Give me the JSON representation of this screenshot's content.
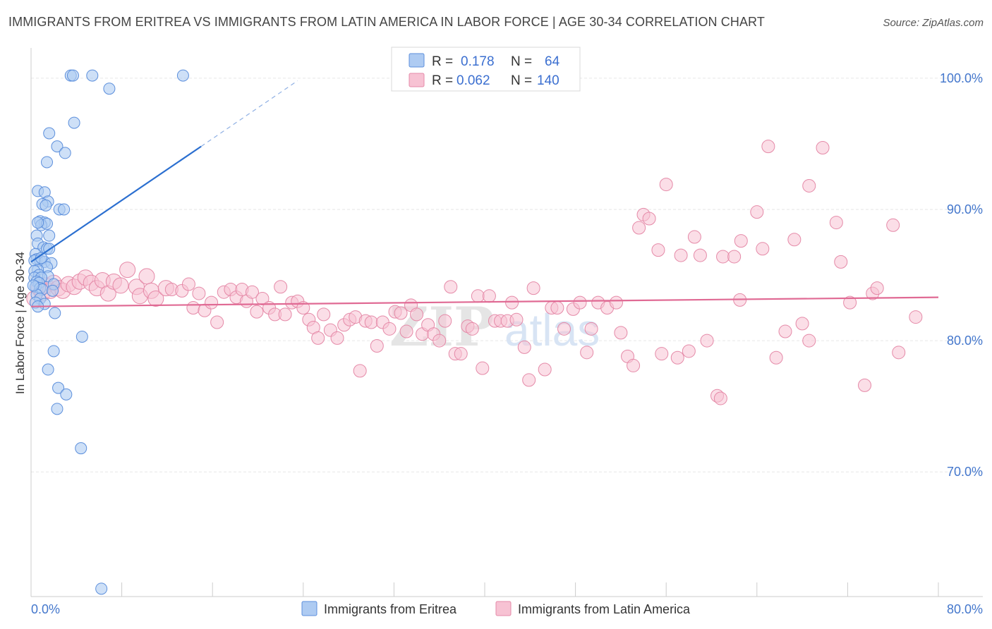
{
  "title": "IMMIGRANTS FROM ERITREA VS IMMIGRANTS FROM LATIN AMERICA IN LABOR FORCE | AGE 30-34 CORRELATION CHART",
  "source": "Source: ZipAtlas.com",
  "watermark": "ZIPatlas",
  "colors": {
    "blue_fill": "#aecbf2",
    "blue_stroke": "#5c8fdc",
    "blue_line": "#2b6fd0",
    "pink_fill": "#f7c2d3",
    "pink_stroke": "#e58aa8",
    "pink_line": "#e06a94",
    "tick_label": "#4477cc",
    "grid": "#e6e6e6"
  },
  "chart_data": {
    "type": "scatter",
    "ylabel": "In Labor Force | Age 30-34",
    "xlim": [
      0,
      80
    ],
    "ylim": [
      60.5,
      103
    ],
    "x_tick_labels": [
      "0.0%",
      "80.0%"
    ],
    "y_ticks": [
      {
        "value": 100,
        "label": "100.0%"
      },
      {
        "value": 90,
        "label": "90.0%"
      },
      {
        "value": 80,
        "label": "80.0%"
      },
      {
        "value": 70,
        "label": "70.0%"
      }
    ],
    "grid": true,
    "legend_stats": [
      {
        "r_label": "R =",
        "r": "0.178",
        "n_label": "N =",
        "n": "64"
      },
      {
        "r_label": "R =",
        "r": "0.062",
        "n_label": "N =",
        "n": "140"
      }
    ],
    "series": [
      {
        "name": "Immigrants from Eritrea",
        "color": "#5c8fdc",
        "trend": {
          "x": [
            0,
            15
          ],
          "y": [
            86.0,
            94.8
          ],
          "dashed_to": {
            "x": 23.5,
            "y": 99.8
          }
        },
        "points": [
          [
            3.5,
            100.2
          ],
          [
            3.7,
            100.2
          ],
          [
            5.4,
            100.2
          ],
          [
            13.4,
            100.2
          ],
          [
            6.9,
            99.2
          ],
          [
            3.8,
            96.6
          ],
          [
            1.6,
            95.8
          ],
          [
            2.3,
            94.8
          ],
          [
            3.0,
            94.3
          ],
          [
            1.4,
            93.6
          ],
          [
            0.6,
            91.4
          ],
          [
            1.2,
            91.3
          ],
          [
            1.5,
            90.6
          ],
          [
            1.0,
            90.4
          ],
          [
            1.3,
            90.3
          ],
          [
            2.5,
            90.0
          ],
          [
            2.9,
            90.0
          ],
          [
            0.8,
            89.1
          ],
          [
            1.2,
            89.0
          ],
          [
            0.9,
            88.8
          ],
          [
            1.4,
            88.9
          ],
          [
            0.5,
            88.0
          ],
          [
            1.6,
            88.0
          ],
          [
            0.6,
            87.4
          ],
          [
            1.1,
            87.1
          ],
          [
            1.4,
            87.0
          ],
          [
            1.6,
            87.0
          ],
          [
            0.4,
            86.6
          ],
          [
            0.5,
            86.2
          ],
          [
            0.8,
            86.1
          ],
          [
            1.2,
            86.0
          ],
          [
            0.3,
            86.1
          ],
          [
            1.8,
            85.9
          ],
          [
            1.4,
            85.6
          ],
          [
            0.6,
            85.4
          ],
          [
            0.3,
            85.3
          ],
          [
            0.7,
            85.0
          ],
          [
            1.5,
            84.9
          ],
          [
            0.3,
            84.8
          ],
          [
            0.9,
            84.8
          ],
          [
            0.5,
            84.5
          ],
          [
            0.7,
            84.4
          ],
          [
            2.0,
            84.3
          ],
          [
            0.4,
            84.1
          ],
          [
            0.8,
            84.0
          ],
          [
            1.0,
            83.9
          ],
          [
            0.5,
            83.5
          ],
          [
            0.8,
            83.2
          ],
          [
            0.4,
            82.9
          ],
          [
            1.2,
            82.8
          ],
          [
            0.6,
            82.6
          ],
          [
            2.1,
            82.1
          ],
          [
            4.5,
            80.3
          ],
          [
            2.0,
            79.2
          ],
          [
            1.5,
            77.8
          ],
          [
            2.4,
            76.4
          ],
          [
            3.1,
            75.9
          ],
          [
            2.3,
            74.8
          ],
          [
            4.4,
            71.8
          ],
          [
            6.2,
            61.1
          ],
          [
            0.2,
            84.2
          ],
          [
            0.9,
            86.3
          ],
          [
            1.9,
            83.8
          ],
          [
            0.6,
            89.0
          ]
        ]
      },
      {
        "name": "Immigrants from Latin America",
        "color": "#e58aa8",
        "trend": {
          "x": [
            0,
            80
          ],
          "y": [
            82.6,
            83.3
          ]
        },
        "points": [
          [
            0.3,
            83.2
          ],
          [
            0.7,
            84.0
          ],
          [
            1.0,
            83.6
          ],
          [
            1.3,
            84.2
          ],
          [
            1.7,
            83.8
          ],
          [
            2.0,
            84.4
          ],
          [
            2.4,
            84.0
          ],
          [
            2.8,
            83.8
          ],
          [
            3.3,
            84.3
          ],
          [
            3.8,
            84.1
          ],
          [
            4.3,
            84.5
          ],
          [
            4.8,
            84.8
          ],
          [
            5.3,
            84.4
          ],
          [
            5.8,
            84.0
          ],
          [
            6.3,
            84.6
          ],
          [
            6.8,
            83.6
          ],
          [
            7.3,
            84.5
          ],
          [
            7.9,
            84.2
          ],
          [
            8.5,
            85.4
          ],
          [
            9.3,
            84.1
          ],
          [
            9.6,
            83.4
          ],
          [
            10.2,
            84.9
          ],
          [
            10.6,
            83.8
          ],
          [
            11.0,
            83.2
          ],
          [
            11.9,
            84.0
          ],
          [
            12.4,
            83.9
          ],
          [
            13.3,
            83.8
          ],
          [
            13.9,
            84.3
          ],
          [
            14.3,
            82.5
          ],
          [
            14.8,
            83.6
          ],
          [
            15.3,
            82.3
          ],
          [
            15.9,
            82.9
          ],
          [
            16.4,
            81.4
          ],
          [
            17.0,
            83.7
          ],
          [
            17.6,
            83.9
          ],
          [
            18.1,
            83.3
          ],
          [
            18.6,
            83.9
          ],
          [
            19.0,
            83.0
          ],
          [
            19.5,
            83.7
          ],
          [
            19.9,
            82.2
          ],
          [
            20.4,
            83.2
          ],
          [
            21.0,
            82.5
          ],
          [
            21.5,
            82.0
          ],
          [
            22.0,
            84.1
          ],
          [
            22.4,
            82.0
          ],
          [
            23.0,
            82.9
          ],
          [
            23.5,
            83.0
          ],
          [
            24.0,
            82.5
          ],
          [
            24.5,
            81.6
          ],
          [
            24.9,
            81.0
          ],
          [
            25.3,
            80.2
          ],
          [
            25.8,
            82.0
          ],
          [
            26.4,
            80.8
          ],
          [
            27.0,
            80.2
          ],
          [
            27.6,
            81.2
          ],
          [
            28.1,
            81.6
          ],
          [
            28.6,
            81.8
          ],
          [
            29.0,
            77.7
          ],
          [
            29.5,
            81.5
          ],
          [
            30.0,
            81.4
          ],
          [
            30.5,
            79.6
          ],
          [
            31.0,
            81.4
          ],
          [
            31.6,
            80.9
          ],
          [
            32.1,
            82.2
          ],
          [
            32.6,
            82.1
          ],
          [
            33.1,
            80.7
          ],
          [
            33.5,
            82.7
          ],
          [
            34.0,
            82.0
          ],
          [
            34.5,
            80.5
          ],
          [
            35.0,
            81.2
          ],
          [
            35.5,
            80.5
          ],
          [
            36.0,
            80.0
          ],
          [
            36.5,
            81.5
          ],
          [
            37.0,
            84.1
          ],
          [
            37.4,
            79.0
          ],
          [
            37.9,
            79.0
          ],
          [
            38.5,
            81.1
          ],
          [
            38.9,
            80.9
          ],
          [
            39.4,
            83.4
          ],
          [
            39.8,
            77.9
          ],
          [
            40.4,
            83.4
          ],
          [
            40.9,
            81.5
          ],
          [
            41.4,
            81.5
          ],
          [
            42.0,
            81.5
          ],
          [
            42.4,
            82.9
          ],
          [
            42.8,
            81.6
          ],
          [
            43.5,
            79.5
          ],
          [
            43.9,
            77.0
          ],
          [
            44.3,
            84.0
          ],
          [
            45.3,
            77.8
          ],
          [
            45.9,
            82.5
          ],
          [
            46.4,
            82.5
          ],
          [
            47.0,
            80.9
          ],
          [
            47.8,
            82.4
          ],
          [
            48.4,
            82.9
          ],
          [
            49.0,
            79.1
          ],
          [
            49.4,
            80.9
          ],
          [
            50.0,
            82.9
          ],
          [
            50.8,
            82.5
          ],
          [
            51.6,
            82.9
          ],
          [
            52.0,
            80.6
          ],
          [
            52.6,
            78.8
          ],
          [
            53.1,
            78.1
          ],
          [
            53.6,
            88.6
          ],
          [
            54.0,
            89.6
          ],
          [
            54.5,
            89.3
          ],
          [
            55.3,
            86.9
          ],
          [
            55.6,
            79.0
          ],
          [
            56.0,
            91.9
          ],
          [
            57.0,
            78.7
          ],
          [
            57.3,
            86.5
          ],
          [
            58.0,
            79.2
          ],
          [
            58.5,
            87.9
          ],
          [
            59.0,
            86.5
          ],
          [
            59.6,
            80.0
          ],
          [
            60.5,
            75.8
          ],
          [
            60.8,
            75.6
          ],
          [
            61.0,
            86.4
          ],
          [
            62.0,
            86.4
          ],
          [
            62.6,
            87.6
          ],
          [
            62.5,
            83.1
          ],
          [
            64.0,
            89.8
          ],
          [
            64.5,
            87.0
          ],
          [
            65.0,
            94.8
          ],
          [
            65.7,
            78.7
          ],
          [
            66.5,
            80.7
          ],
          [
            67.3,
            87.7
          ],
          [
            68.0,
            81.3
          ],
          [
            68.6,
            80.0
          ],
          [
            68.6,
            91.8
          ],
          [
            69.8,
            94.7
          ],
          [
            71.0,
            89.0
          ],
          [
            71.4,
            86.0
          ],
          [
            72.2,
            82.9
          ],
          [
            73.5,
            76.6
          ],
          [
            74.2,
            83.6
          ],
          [
            74.6,
            84.0
          ],
          [
            76.0,
            88.8
          ],
          [
            76.5,
            79.1
          ],
          [
            78.0,
            81.8
          ]
        ]
      }
    ]
  },
  "bottom_legend": [
    {
      "label": "Immigrants from Eritrea"
    },
    {
      "label": "Immigrants from Latin America"
    }
  ]
}
